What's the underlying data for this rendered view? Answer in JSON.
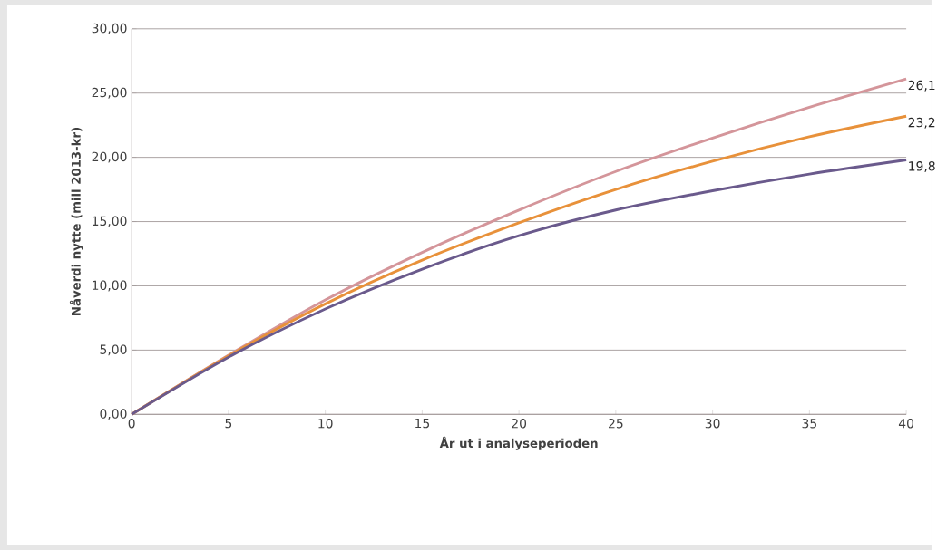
{
  "chart_data": {
    "type": "line",
    "xlabel": "År ut i analyseperioden",
    "ylabel": "Nåverdi nytte (mill 2013-kr)",
    "xlim": [
      0,
      40
    ],
    "xticks": [
      0,
      5,
      10,
      15,
      20,
      25,
      30,
      35,
      40
    ],
    "ylim": [
      0,
      30
    ],
    "yticks": [
      {
        "value": 0,
        "label": "0,00"
      },
      {
        "value": 5,
        "label": "5,00"
      },
      {
        "value": 10,
        "label": "10,00"
      },
      {
        "value": 15,
        "label": "15,00"
      },
      {
        "value": 20,
        "label": "20,00"
      },
      {
        "value": 25,
        "label": "25,00"
      },
      {
        "value": 30,
        "label": "30,00"
      }
    ],
    "grid": "y",
    "marker": "none",
    "line_style": "solid",
    "x": [
      0,
      5,
      10,
      15,
      20,
      25,
      30,
      35,
      40
    ],
    "series": [
      {
        "color": "#d4959a",
        "values": [
          0,
          4.6,
          8.9,
          12.6,
          15.9,
          18.9,
          21.5,
          23.9,
          26.1
        ],
        "value_labels": [
          null,
          null,
          null,
          null,
          null,
          null,
          null,
          null,
          "26,1"
        ]
      },
      {
        "color": "#e8913a",
        "values": [
          0,
          4.55,
          8.6,
          12.0,
          14.9,
          17.5,
          19.7,
          21.6,
          23.2
        ],
        "value_labels": [
          null,
          null,
          null,
          null,
          null,
          null,
          null,
          null,
          "23,2"
        ]
      },
      {
        "color": "#6a5a8c",
        "values": [
          0,
          4.45,
          8.2,
          11.3,
          13.9,
          15.9,
          17.4,
          18.7,
          19.8
        ],
        "value_labels": [
          null,
          null,
          null,
          null,
          null,
          null,
          null,
          null,
          "19,8"
        ]
      }
    ]
  }
}
